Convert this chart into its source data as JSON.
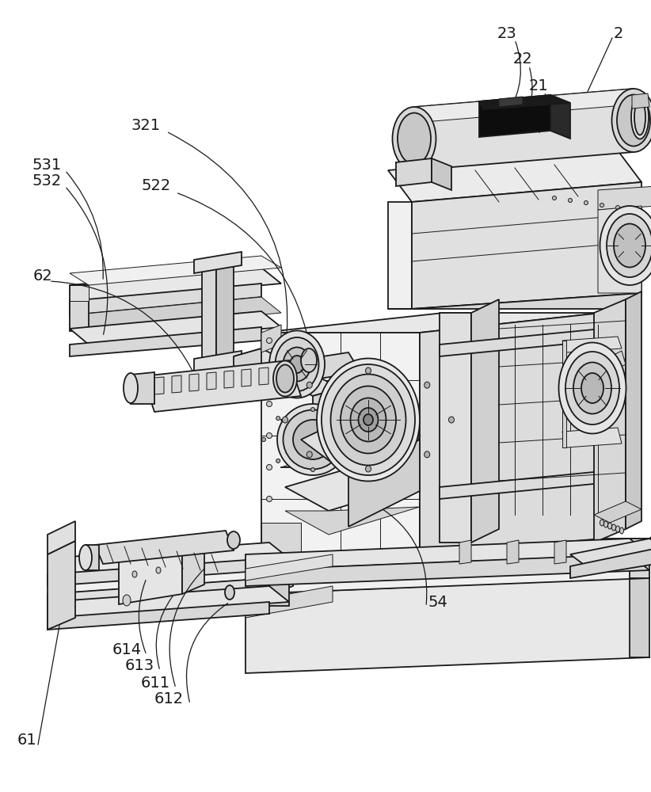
{
  "bg_color": "#ffffff",
  "lc": "#1a1a1a",
  "lw_main": 1.3,
  "lw_thin": 0.7,
  "lw_thick": 2.0,
  "fc_light": "#f0f0f0",
  "fc_mid": "#d8d8d8",
  "fc_dark": "#b8b8b8",
  "fc_black": "#111111",
  "figsize": [
    8.22,
    10.0
  ],
  "dpi": 100
}
